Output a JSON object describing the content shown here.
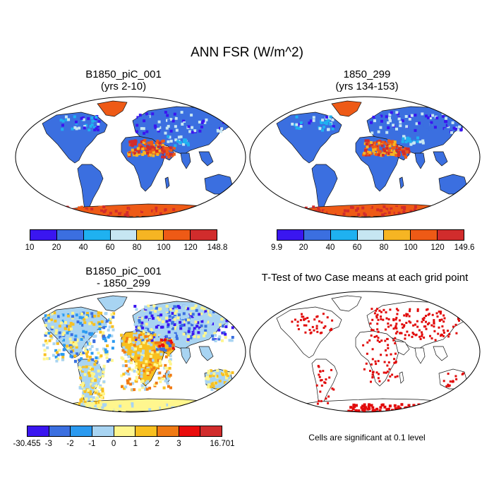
{
  "title": "ANN FSR (W/m^2)",
  "panels": [
    {
      "title_line1": "B1850_piC_001",
      "title_line2": "(yrs 2-10)",
      "colorbar": {
        "labels": [
          "10",
          "20",
          "40",
          "60",
          "80",
          "100",
          "120",
          "148.8"
        ],
        "colors": [
          "#3a16f0",
          "#3b6fe0",
          "#1fb1f0",
          "#c6e6f2",
          "#f6b523",
          "#ee5a16",
          "#d12c2c"
        ]
      }
    },
    {
      "title_line1": "1850_299",
      "title_line2": "(yrs 134-153)",
      "colorbar": {
        "labels": [
          "9.9",
          "20",
          "40",
          "60",
          "80",
          "100",
          "120",
          "149.6"
        ],
        "colors": [
          "#3a16f0",
          "#3b6fe0",
          "#1fb1f0",
          "#c6e6f2",
          "#f6b523",
          "#ee5a16",
          "#d12c2c"
        ]
      }
    },
    {
      "title_line1": "B1850_piC_001",
      "title_line2": "- 1850_299",
      "colorbar": {
        "labels": [
          "-30.455",
          "-3",
          "-2",
          "-1",
          "0",
          "1",
          "2",
          "3",
          "16.701"
        ],
        "colors": [
          "#3a16f0",
          "#3b6fe0",
          "#2b9af0",
          "#a8d4f2",
          "#fff68e",
          "#f8c020",
          "#f07a14",
          "#ea0c0c",
          "#d12c2c"
        ]
      }
    },
    {
      "title_line1": "T-Test of two Case means at each grid point",
      "title_line2": "",
      "note": "Cells are significant at 0.1 level"
    }
  ]
}
